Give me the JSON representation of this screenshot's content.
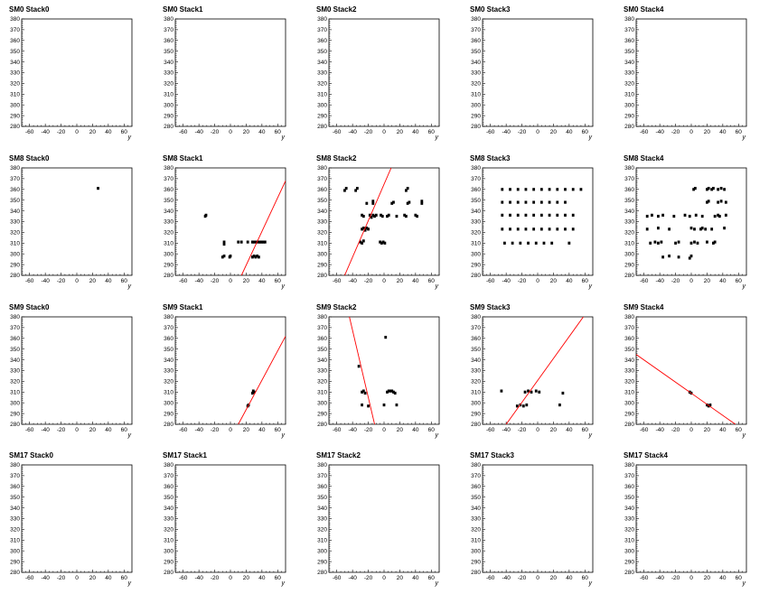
{
  "chart_data": [
    {
      "type": "scatter",
      "title": "SM0 Stack0",
      "xlabel": "y",
      "ylabel": "",
      "xlim": [
        -70,
        70
      ],
      "ylim": [
        280,
        380
      ],
      "points": [],
      "fit_line": null
    },
    {
      "type": "scatter",
      "title": "SM0 Stack1",
      "xlabel": "y",
      "ylabel": "",
      "xlim": [
        -70,
        70
      ],
      "ylim": [
        280,
        380
      ],
      "points": [],
      "fit_line": null
    },
    {
      "type": "scatter",
      "title": "SM0 Stack2",
      "xlabel": "y",
      "ylabel": "",
      "xlim": [
        -70,
        70
      ],
      "ylim": [
        280,
        380
      ],
      "points": [],
      "fit_line": null
    },
    {
      "type": "scatter",
      "title": "SM0 Stack3",
      "xlabel": "y",
      "ylabel": "",
      "xlim": [
        -70,
        70
      ],
      "ylim": [
        280,
        380
      ],
      "points": [],
      "fit_line": null
    },
    {
      "type": "scatter",
      "title": "SM0 Stack4",
      "xlabel": "y",
      "ylabel": "",
      "xlim": [
        -70,
        70
      ],
      "ylim": [
        280,
        380
      ],
      "points": [],
      "fit_line": null
    },
    {
      "type": "scatter",
      "title": "SM8 Stack0",
      "xlabel": "y",
      "ylabel": "",
      "xlim": [
        -70,
        70
      ],
      "ylim": [
        280,
        380
      ],
      "points": [
        [
          27,
          361
        ]
      ],
      "fit_line": null
    },
    {
      "type": "scatter",
      "title": "SM8 Stack1",
      "xlabel": "y",
      "ylabel": "",
      "xlim": [
        -70,
        70
      ],
      "ylim": [
        280,
        380
      ],
      "points": [
        [
          -32,
          335
        ],
        [
          -31,
          336
        ],
        [
          -8,
          309
        ],
        [
          -8,
          311
        ],
        [
          -10,
          297
        ],
        [
          -8,
          298
        ],
        [
          -1,
          297
        ],
        [
          0,
          298
        ],
        [
          10,
          311
        ],
        [
          14,
          311
        ],
        [
          22,
          311
        ],
        [
          28,
          311
        ],
        [
          30,
          311
        ],
        [
          33,
          311
        ],
        [
          36,
          311
        ],
        [
          38,
          311
        ],
        [
          40,
          311
        ],
        [
          42,
          311
        ],
        [
          44,
          311
        ],
        [
          28,
          297
        ],
        [
          30,
          298
        ],
        [
          32,
          297
        ],
        [
          34,
          298
        ],
        [
          36,
          297
        ]
      ],
      "fit_line": {
        "x": [
          14,
          70
        ],
        "y": [
          280,
          368
        ]
      }
    },
    {
      "type": "scatter",
      "title": "SM8 Stack2",
      "xlabel": "y",
      "ylabel": "",
      "xlim": [
        -70,
        70
      ],
      "ylim": [
        280,
        380
      ],
      "points": [
        [
          -50,
          359
        ],
        [
          -48,
          361
        ],
        [
          -36,
          359
        ],
        [
          -34,
          361
        ],
        [
          -22,
          347
        ],
        [
          -14,
          349
        ],
        [
          -14,
          347
        ],
        [
          -28,
          336
        ],
        [
          -26,
          335
        ],
        [
          -18,
          336
        ],
        [
          -16,
          334
        ],
        [
          -14,
          336
        ],
        [
          -12,
          335
        ],
        [
          -10,
          336
        ],
        [
          -28,
          323
        ],
        [
          -26,
          324
        ],
        [
          -24,
          322
        ],
        [
          -22,
          324
        ],
        [
          -20,
          323
        ],
        [
          -30,
          311
        ],
        [
          -28,
          310
        ],
        [
          -26,
          312
        ],
        [
          -5,
          311
        ],
        [
          -3,
          310
        ],
        [
          -1,
          311
        ],
        [
          1,
          310
        ],
        [
          -4,
          336
        ],
        [
          -2,
          335
        ],
        [
          4,
          335
        ],
        [
          6,
          336
        ],
        [
          16,
          335
        ],
        [
          10,
          347
        ],
        [
          12,
          348
        ],
        [
          28,
          359
        ],
        [
          30,
          361
        ],
        [
          26,
          336
        ],
        [
          28,
          335
        ],
        [
          40,
          336
        ],
        [
          42,
          335
        ],
        [
          30,
          347
        ],
        [
          32,
          348
        ],
        [
          48,
          347
        ],
        [
          48,
          349
        ]
      ],
      "fit_line": {
        "x": [
          -50,
          9
        ],
        "y": [
          280,
          380
        ]
      }
    },
    {
      "type": "scatter",
      "title": "SM8 Stack3",
      "xlabel": "y",
      "ylabel": "",
      "xlim": [
        -70,
        70
      ],
      "ylim": [
        280,
        380
      ],
      "points": [
        [
          -45,
          360
        ],
        [
          -35,
          360
        ],
        [
          -25,
          360
        ],
        [
          -15,
          360
        ],
        [
          -5,
          360
        ],
        [
          5,
          360
        ],
        [
          15,
          360
        ],
        [
          25,
          360
        ],
        [
          35,
          360
        ],
        [
          45,
          360
        ],
        [
          55,
          360
        ],
        [
          -45,
          348
        ],
        [
          -35,
          348
        ],
        [
          -25,
          348
        ],
        [
          -15,
          348
        ],
        [
          -5,
          348
        ],
        [
          5,
          348
        ],
        [
          15,
          348
        ],
        [
          25,
          348
        ],
        [
          35,
          348
        ],
        [
          -45,
          336
        ],
        [
          -35,
          336
        ],
        [
          -25,
          336
        ],
        [
          -15,
          336
        ],
        [
          -5,
          336
        ],
        [
          5,
          336
        ],
        [
          15,
          336
        ],
        [
          25,
          336
        ],
        [
          35,
          336
        ],
        [
          45,
          336
        ],
        [
          -45,
          323
        ],
        [
          -35,
          323
        ],
        [
          -25,
          323
        ],
        [
          -15,
          323
        ],
        [
          -5,
          323
        ],
        [
          5,
          323
        ],
        [
          15,
          323
        ],
        [
          25,
          323
        ],
        [
          35,
          323
        ],
        [
          45,
          323
        ],
        [
          -42,
          310
        ],
        [
          -32,
          310
        ],
        [
          -22,
          310
        ],
        [
          -12,
          310
        ],
        [
          -2,
          310
        ],
        [
          8,
          310
        ],
        [
          18,
          310
        ],
        [
          40,
          310
        ]
      ],
      "fit_line": null
    },
    {
      "type": "scatter",
      "title": "SM8 Stack4",
      "xlabel": "y",
      "ylabel": "",
      "xlim": [
        -70,
        70
      ],
      "ylim": [
        280,
        380
      ],
      "points": [
        [
          3,
          360
        ],
        [
          5,
          361
        ],
        [
          20,
          360
        ],
        [
          22,
          361
        ],
        [
          26,
          360
        ],
        [
          28,
          361
        ],
        [
          34,
          360
        ],
        [
          38,
          361
        ],
        [
          42,
          360
        ],
        [
          20,
          348
        ],
        [
          22,
          349
        ],
        [
          34,
          348
        ],
        [
          38,
          349
        ],
        [
          44,
          348
        ],
        [
          -56,
          335
        ],
        [
          -50,
          336
        ],
        [
          -42,
          335
        ],
        [
          -36,
          336
        ],
        [
          -22,
          335
        ],
        [
          -8,
          336
        ],
        [
          -2,
          335
        ],
        [
          6,
          336
        ],
        [
          14,
          335
        ],
        [
          30,
          335
        ],
        [
          34,
          336
        ],
        [
          36,
          335
        ],
        [
          44,
          336
        ],
        [
          -56,
          323
        ],
        [
          -42,
          324
        ],
        [
          -28,
          323
        ],
        [
          0,
          324
        ],
        [
          4,
          323
        ],
        [
          12,
          323
        ],
        [
          14,
          324
        ],
        [
          18,
          323
        ],
        [
          26,
          323
        ],
        [
          42,
          324
        ],
        [
          -52,
          310
        ],
        [
          -46,
          311
        ],
        [
          -42,
          310
        ],
        [
          -38,
          311
        ],
        [
          -20,
          310
        ],
        [
          -16,
          311
        ],
        [
          0,
          310
        ],
        [
          4,
          311
        ],
        [
          8,
          310
        ],
        [
          20,
          311
        ],
        [
          28,
          310
        ],
        [
          30,
          311
        ],
        [
          -36,
          297
        ],
        [
          -28,
          298
        ],
        [
          -16,
          297
        ],
        [
          -2,
          296
        ],
        [
          0,
          298
        ]
      ],
      "fit_line": null
    },
    {
      "type": "scatter",
      "title": "SM9 Stack0",
      "xlabel": "y",
      "ylabel": "",
      "xlim": [
        -70,
        70
      ],
      "ylim": [
        280,
        380
      ],
      "points": [],
      "fit_line": null
    },
    {
      "type": "scatter",
      "title": "SM9 Stack1",
      "xlabel": "y",
      "ylabel": "",
      "xlim": [
        -70,
        70
      ],
      "ylim": [
        280,
        380
      ],
      "points": [
        [
          22,
          297
        ],
        [
          23,
          298
        ],
        [
          28,
          309
        ],
        [
          29,
          311
        ],
        [
          30,
          310
        ]
      ],
      "fit_line": {
        "x": [
          10,
          70
        ],
        "y": [
          280,
          362
        ]
      }
    },
    {
      "type": "scatter",
      "title": "SM9 Stack2",
      "xlabel": "y",
      "ylabel": "",
      "xlim": [
        -70,
        70
      ],
      "ylim": [
        280,
        380
      ],
      "points": [
        [
          2,
          361
        ],
        [
          -32,
          334
        ],
        [
          -28,
          310
        ],
        [
          -26,
          311
        ],
        [
          -24,
          309
        ],
        [
          -28,
          298
        ],
        [
          -20,
          297
        ],
        [
          0,
          298
        ],
        [
          4,
          310
        ],
        [
          6,
          311
        ],
        [
          8,
          311
        ],
        [
          10,
          311
        ],
        [
          12,
          310
        ],
        [
          14,
          309
        ],
        [
          16,
          298
        ]
      ],
      "fit_line": {
        "x": [
          -44,
          -12
        ],
        "y": [
          380,
          280
        ]
      }
    },
    {
      "type": "scatter",
      "title": "SM9 Stack3",
      "xlabel": "y",
      "ylabel": "",
      "xlim": [
        -70,
        70
      ],
      "ylim": [
        280,
        380
      ],
      "points": [
        [
          -46,
          311
        ],
        [
          -26,
          297
        ],
        [
          -22,
          298
        ],
        [
          -18,
          297
        ],
        [
          -14,
          298
        ],
        [
          -16,
          310
        ],
        [
          -12,
          311
        ],
        [
          -8,
          310
        ],
        [
          -2,
          311
        ],
        [
          2,
          310
        ],
        [
          28,
          298
        ],
        [
          32,
          309
        ]
      ],
      "fit_line": {
        "x": [
          -40,
          58
        ],
        "y": [
          280,
          380
        ]
      }
    },
    {
      "type": "scatter",
      "title": "SM9 Stack4",
      "xlabel": "y",
      "ylabel": "",
      "xlim": [
        -70,
        70
      ],
      "ylim": [
        280,
        380
      ],
      "points": [
        [
          -2,
          310
        ],
        [
          0,
          309
        ],
        [
          20,
          298
        ],
        [
          22,
          297
        ],
        [
          24,
          298
        ]
      ],
      "fit_line": {
        "x": [
          -70,
          56
        ],
        "y": [
          345,
          280
        ]
      }
    },
    {
      "type": "scatter",
      "title": "SM17 Stack0",
      "xlabel": "y",
      "ylabel": "",
      "xlim": [
        -70,
        70
      ],
      "ylim": [
        280,
        380
      ],
      "points": [],
      "fit_line": null
    },
    {
      "type": "scatter",
      "title": "SM17 Stack1",
      "xlabel": "y",
      "ylabel": "",
      "xlim": [
        -70,
        70
      ],
      "ylim": [
        280,
        380
      ],
      "points": [],
      "fit_line": null
    },
    {
      "type": "scatter",
      "title": "SM17 Stack2",
      "xlabel": "y",
      "ylabel": "",
      "xlim": [
        -70,
        70
      ],
      "ylim": [
        280,
        380
      ],
      "points": [],
      "fit_line": null
    },
    {
      "type": "scatter",
      "title": "SM17 Stack3",
      "xlabel": "y",
      "ylabel": "",
      "xlim": [
        -70,
        70
      ],
      "ylim": [
        280,
        380
      ],
      "points": [],
      "fit_line": null
    },
    {
      "type": "scatter",
      "title": "SM17 Stack4",
      "xlabel": "y",
      "ylabel": "",
      "xlim": [
        -70,
        70
      ],
      "ylim": [
        280,
        380
      ],
      "points": [],
      "fit_line": null
    }
  ],
  "axis": {
    "x_ticks": [
      -60,
      -40,
      -20,
      0,
      20,
      40,
      60
    ],
    "y_ticks": [
      280,
      290,
      300,
      310,
      320,
      330,
      340,
      350,
      360,
      370,
      380
    ]
  },
  "colors": {
    "fit": "#ff0000",
    "marker": "#000000",
    "frame": "#000000"
  }
}
